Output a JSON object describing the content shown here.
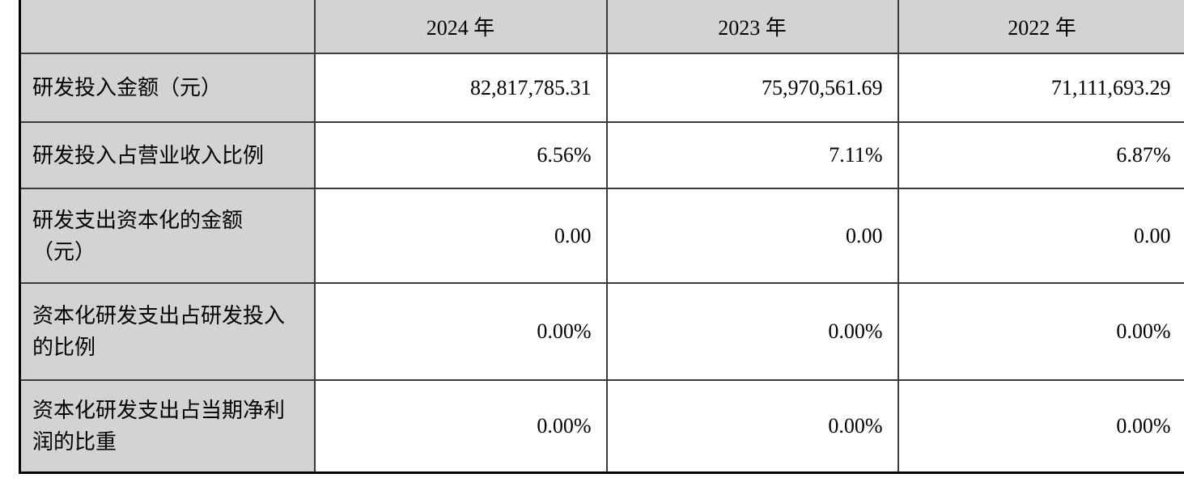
{
  "table": {
    "header": {
      "corner": "",
      "years": [
        "2024 年",
        "2023 年",
        "2022 年"
      ]
    },
    "rows": [
      {
        "label": "研发投入金额（元）",
        "values": [
          "82,817,785.31",
          "75,970,561.69",
          "71,111,693.29"
        ]
      },
      {
        "label": "研发投入占营业收入比例",
        "values": [
          "6.56%",
          "7.11%",
          "6.87%"
        ]
      },
      {
        "label": "研发支出资本化的金额\n（元）",
        "values": [
          "0.00",
          "0.00",
          "0.00"
        ]
      },
      {
        "label": "资本化研发支出占研发投入\n的比例",
        "values": [
          "0.00%",
          "0.00%",
          "0.00%"
        ]
      },
      {
        "label": "资本化研发支出占当期净利\n润的比重",
        "values": [
          "0.00%",
          "0.00%",
          "0.00%"
        ]
      }
    ],
    "colors": {
      "header_bg": "#d3d3d3",
      "label_bg": "#d3d3d3",
      "grid_line": "#3a3a3a",
      "outer_border": "#000000",
      "cell_bg": "#ffffff",
      "text": "#000000"
    }
  }
}
